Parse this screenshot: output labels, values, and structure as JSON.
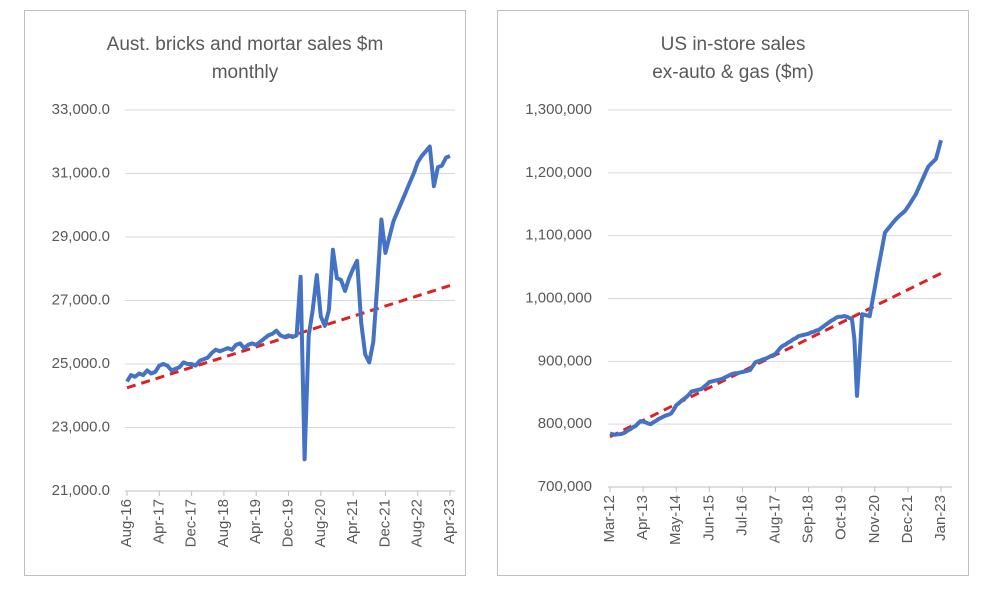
{
  "chart_data": [
    {
      "type": "line",
      "title": [
        "Aust. bricks and mortar sales $m",
        "monthly"
      ],
      "categories": [
        "Aug-16",
        null,
        null,
        null,
        null,
        null,
        null,
        null,
        "Apr-17",
        null,
        null,
        null,
        null,
        null,
        null,
        null,
        "Dec-17",
        null,
        null,
        null,
        null,
        null,
        null,
        null,
        "Aug-18",
        null,
        null,
        null,
        null,
        null,
        null,
        null,
        "Apr-19",
        null,
        null,
        null,
        null,
        null,
        null,
        null,
        "Dec-19",
        null,
        null,
        null,
        null,
        null,
        null,
        null,
        "Aug-20",
        null,
        null,
        null,
        null,
        null,
        null,
        null,
        "Apr-21",
        null,
        null,
        null,
        null,
        null,
        null,
        null,
        "Dec-21",
        null,
        null,
        null,
        null,
        null,
        null,
        null,
        "Aug-22",
        null,
        null,
        null,
        null,
        null,
        null,
        null,
        "Apr-23"
      ],
      "series": [
        {
          "color": "#4472c4",
          "values": [
            24450,
            24650,
            24600,
            24700,
            24650,
            24800,
            24700,
            24750,
            24950,
            25000,
            24950,
            24800,
            24850,
            24900,
            25050,
            25000,
            25000,
            24950,
            25100,
            25150,
            25200,
            25350,
            25450,
            25400,
            25450,
            25500,
            25450,
            25600,
            25650,
            25500,
            25600,
            25650,
            25600,
            25700,
            25800,
            25900,
            25950,
            26050,
            25900,
            25850,
            25900,
            25850,
            25900,
            27750,
            22000,
            25900,
            26700,
            27800,
            26500,
            26200,
            26700,
            28600,
            27700,
            27650,
            27300,
            27700,
            28000,
            28250,
            26300,
            25300,
            25050,
            25700,
            27500,
            29550,
            28500,
            29000,
            29500,
            29800,
            30100,
            30400,
            30700,
            31000,
            31350,
            31550,
            31700,
            31850,
            30600,
            31200,
            31250,
            31500,
            31550
          ]
        }
      ],
      "trend": {
        "color": "#e02020",
        "values": [
          24250,
          27470
        ]
      },
      "ylim": [
        21000,
        33000
      ],
      "yticks": [
        {
          "value": 21000,
          "label": "21,000.0"
        },
        {
          "value": 23000,
          "label": "23,000.0"
        },
        {
          "value": 25000,
          "label": "25,000.0"
        },
        {
          "value": 27000,
          "label": "27,000.0"
        },
        {
          "value": 29000,
          "label": "29,000.0"
        },
        {
          "value": 31000,
          "label": "31,000.0"
        },
        {
          "value": 33000,
          "label": "33,000.0"
        }
      ],
      "grid": true
    },
    {
      "type": "line",
      "title": [
        "US in-store sales",
        "ex-auto & gas ($m)"
      ],
      "categories": [
        "Mar-12",
        null,
        null,
        null,
        null,
        null,
        null,
        null,
        null,
        null,
        null,
        null,
        null,
        "Apr-13",
        null,
        null,
        null,
        null,
        null,
        null,
        null,
        null,
        null,
        null,
        null,
        null,
        "May-14",
        null,
        null,
        null,
        null,
        null,
        null,
        null,
        null,
        null,
        null,
        null,
        null,
        "Jun-15",
        null,
        null,
        null,
        null,
        null,
        null,
        null,
        null,
        null,
        null,
        null,
        null,
        "Jul-16",
        null,
        null,
        null,
        null,
        null,
        null,
        null,
        null,
        null,
        null,
        null,
        null,
        "Aug-17",
        null,
        null,
        null,
        null,
        null,
        null,
        null,
        null,
        null,
        null,
        null,
        null,
        "Sep-18",
        null,
        null,
        null,
        null,
        null,
        null,
        null,
        null,
        null,
        null,
        null,
        null,
        "Oct-19",
        null,
        null,
        null,
        null,
        null,
        null,
        null,
        null,
        null,
        null,
        null,
        null,
        "Nov-20",
        null,
        null,
        null,
        null,
        null,
        null,
        null,
        null,
        null,
        null,
        null,
        null,
        "Dec-21",
        null,
        null,
        null,
        null,
        null,
        null,
        null,
        null,
        null,
        null,
        null,
        null,
        "Jan-23"
      ],
      "series": [
        {
          "color": "#4472c4",
          "values": [
            785000,
            784000,
            783000,
            784000,
            784000,
            785000,
            787000,
            790000,
            792000,
            795000,
            797000,
            801000,
            805000,
            804000,
            803000,
            801000,
            800000,
            803000,
            805000,
            808000,
            810000,
            812000,
            814000,
            815000,
            817000,
            823000,
            830000,
            833000,
            837000,
            840000,
            843000,
            847000,
            852000,
            853000,
            854000,
            855000,
            856000,
            860000,
            863000,
            867000,
            868000,
            869000,
            870000,
            871000,
            872000,
            874000,
            876000,
            878000,
            880000,
            881000,
            881000,
            882000,
            883000,
            884000,
            885000,
            886000,
            892000,
            898000,
            900000,
            901000,
            903000,
            904000,
            906000,
            908000,
            910000,
            912000,
            917000,
            922000,
            925000,
            927000,
            930000,
            932000,
            935000,
            937000,
            940000,
            941000,
            942000,
            943000,
            944000,
            946000,
            947000,
            949000,
            950000,
            953000,
            956000,
            959000,
            962000,
            965000,
            967000,
            970000,
            971000,
            971000,
            972000,
            971000,
            969000,
            968000,
            935000,
            845000,
            905000,
            975000,
            974000,
            973000,
            972000,
            995000,
            1017000,
            1040000,
            1062000,
            1083000,
            1105000,
            1110000,
            1115000,
            1120000,
            1125000,
            1129000,
            1133000,
            1136000,
            1140000,
            1146000,
            1152000,
            1159000,
            1165000,
            1174000,
            1183000,
            1192000,
            1201000,
            1210000,
            1214000,
            1218000,
            1222000,
            1237000,
            1252000
          ]
        }
      ],
      "trend": {
        "color": "#e02020",
        "values": [
          780000,
          1040000
        ]
      },
      "ylim": [
        700000,
        1300000
      ],
      "yticks": [
        {
          "value": 700000,
          "label": "700,000"
        },
        {
          "value": 800000,
          "label": "800,000"
        },
        {
          "value": 900000,
          "label": "900,000"
        },
        {
          "value": 1000000,
          "label": "1,000,000"
        },
        {
          "value": 1100000,
          "label": "1,100,000"
        },
        {
          "value": 1200000,
          "label": "1,200,000"
        },
        {
          "value": 1300000,
          "label": "1,300,000"
        }
      ],
      "grid": true
    }
  ]
}
